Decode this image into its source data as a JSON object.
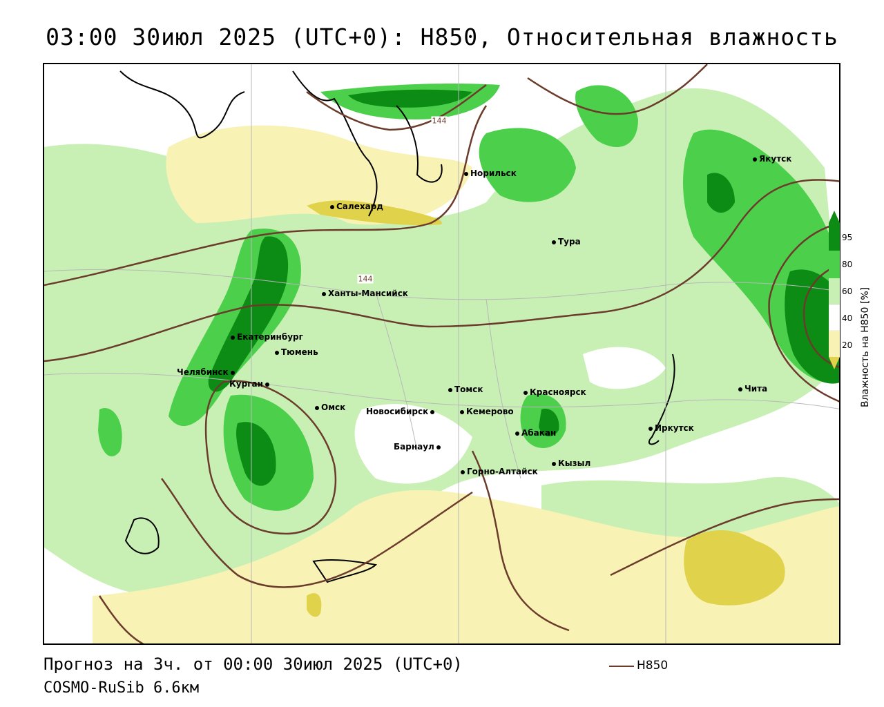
{
  "title": "03:00 30июл 2025 (UTC+0): H850, Относительная влажность",
  "footer": {
    "forecast": "Прогноз на 3ч. от 00:00 30июл 2025 (UTC+0)",
    "model": "COSMO-RuSib 6.6км"
  },
  "legend": {
    "contour_label": "H850",
    "contour_color": "#6b3b2b"
  },
  "colorbar": {
    "title": "Влажность на H850 [%]",
    "ticks": [
      "95",
      "80",
      "60",
      "40",
      "20"
    ],
    "colors": {
      "dry": "#e0d24a",
      "light_dry": "#f8f2b4",
      "neutral": "#ffffff",
      "light_green": "#c8f0b4",
      "mid_green": "#4cd04c",
      "dark_green": "#0c8c14"
    }
  },
  "contour_labels": [
    "144",
    "144"
  ],
  "cities": [
    {
      "name": "Салехард"
    },
    {
      "name": "Норильск"
    },
    {
      "name": "Якутск"
    },
    {
      "name": "Тура"
    },
    {
      "name": "Ханты-Мансийск"
    },
    {
      "name": "Екатеринбург"
    },
    {
      "name": "Тюмень"
    },
    {
      "name": "Челябинск"
    },
    {
      "name": "Курган"
    },
    {
      "name": "Омск"
    },
    {
      "name": "Новосибирск"
    },
    {
      "name": "Томск"
    },
    {
      "name": "Кемерово"
    },
    {
      "name": "Красноярск"
    },
    {
      "name": "Абакан"
    },
    {
      "name": "Барнаул"
    },
    {
      "name": "Горно-Алтайск"
    },
    {
      "name": "Кызыл"
    },
    {
      "name": "Иркутск"
    },
    {
      "name": "Чита"
    }
  ]
}
